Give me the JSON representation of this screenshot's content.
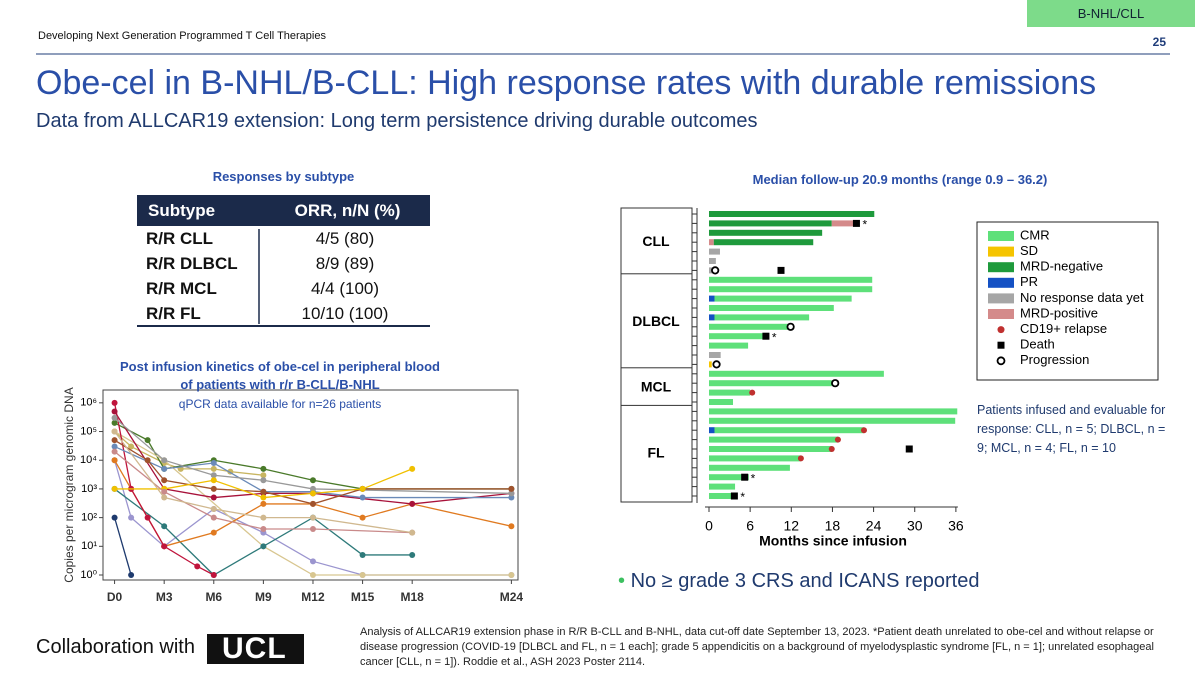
{
  "header": {
    "deck": "Developing Next Generation Programmed T Cell Therapies",
    "page": "25",
    "tag": "B-NHL/CLL",
    "title": "Obe-cel in B-NHL/B-CLL: High response rates with durable remissions",
    "subtitle": "Data from ALLCAR19 extension: Long term persistence driving durable outcomes"
  },
  "table": {
    "title": "Responses by subtype",
    "columns": [
      "Subtype",
      "ORR, n/N (%)"
    ],
    "rows": [
      [
        "R/R CLL",
        "4/5 (80)"
      ],
      [
        "R/R DLBCL",
        "8/9 (89)"
      ],
      [
        "R/R MCL",
        "4/4 (100)"
      ],
      [
        "R/R FL",
        "10/10 (100)"
      ]
    ]
  },
  "chart_data": [
    {
      "type": "line",
      "title": "Post infusion kinetics of obe-cel in peripheral blood of patients with r/r B-CLL/B-NHL",
      "subtitle": "qPCR data available for n=26 patients",
      "y_label": "Copies per microgram genomic DNA",
      "log_y": true,
      "xlim": [
        -0.7,
        24.4
      ],
      "ylim": [
        0.67,
        2800000
      ],
      "xticks": [
        {
          "value": 0,
          "label": "D0"
        },
        {
          "value": 3,
          "label": "M3"
        },
        {
          "value": 6,
          "label": "M6"
        },
        {
          "value": 9,
          "label": "M9"
        },
        {
          "value": 12,
          "label": "M12"
        },
        {
          "value": 15,
          "label": "M15"
        },
        {
          "value": 18,
          "label": "M18"
        },
        {
          "value": 24,
          "label": "M24"
        }
      ],
      "yticks": [
        {
          "value": 1,
          "label": "10⁰"
        },
        {
          "value": 10,
          "label": "10¹"
        },
        {
          "value": 100,
          "label": "10²"
        },
        {
          "value": 1000,
          "label": "10³"
        },
        {
          "value": 10000,
          "label": "10⁴"
        },
        {
          "value": 100000,
          "label": "10⁵"
        },
        {
          "value": 1000000,
          "label": "10⁶"
        }
      ],
      "series": [
        {
          "color": "#c8b560",
          "x": [
            0,
            1,
            3,
            4,
            6,
            7,
            9
          ],
          "values": [
            100000,
            30000,
            8000,
            5000,
            5000,
            4000,
            3000
          ]
        },
        {
          "color": "#4a7a2a",
          "x": [
            0,
            2,
            3,
            6,
            9,
            12,
            15,
            24
          ],
          "values": [
            200000,
            50000,
            5000,
            10000,
            5000,
            2000,
            1000,
            1000
          ]
        },
        {
          "color": "#9b95cf",
          "x": [
            0,
            1,
            3,
            6,
            9,
            12,
            15,
            24
          ],
          "values": [
            10000,
            100,
            10,
            200,
            30,
            3,
            1,
            1
          ]
        },
        {
          "color": "#d8c690",
          "x": [
            0,
            3,
            9,
            12,
            15,
            24
          ],
          "values": [
            100000,
            10000,
            10,
            1,
            1,
            1
          ]
        },
        {
          "color": "#2e7a7a",
          "x": [
            0,
            3,
            6,
            9,
            12,
            15,
            18
          ],
          "values": [
            1000,
            50,
            1,
            10,
            100,
            5,
            5
          ]
        },
        {
          "color": "#e07a20",
          "x": [
            0,
            1,
            3,
            6,
            9,
            12,
            15,
            18,
            24
          ],
          "values": [
            10000,
            1000,
            10,
            30,
            300,
            300,
            100,
            300,
            50
          ]
        },
        {
          "color": "#c0143c",
          "x": [
            0,
            1,
            2,
            3,
            5,
            6
          ],
          "values": [
            1000000,
            1000,
            100,
            10,
            2,
            1
          ]
        },
        {
          "color": "#a8123a",
          "x": [
            0,
            3,
            6,
            9,
            12,
            18,
            24
          ],
          "values": [
            500000,
            1000,
            500,
            700,
            700,
            300,
            700
          ]
        },
        {
          "color": "#6a8ab8",
          "x": [
            0,
            3,
            6,
            9,
            12,
            15,
            24
          ],
          "values": [
            30000,
            5000,
            8000,
            800,
            800,
            500,
            500
          ]
        },
        {
          "color": "#999999",
          "x": [
            0,
            3,
            6,
            9,
            12,
            24
          ],
          "values": [
            300000,
            10000,
            3000,
            2000,
            1000,
            700
          ]
        },
        {
          "color": "#a0522d",
          "x": [
            0,
            2,
            3,
            6,
            9,
            12,
            15,
            24
          ],
          "values": [
            50000,
            10000,
            2000,
            1000,
            800,
            300,
            1000,
            1000
          ]
        },
        {
          "color": "#f0c000",
          "x": [
            0,
            3,
            6,
            9,
            12,
            15,
            18
          ],
          "values": [
            1000,
            1000,
            2000,
            500,
            700,
            1000,
            5000
          ]
        },
        {
          "color": "#1e3a6e",
          "x": [
            0,
            1
          ],
          "values": [
            100,
            1
          ]
        },
        {
          "color": "#c98a8a",
          "x": [
            0,
            3,
            6,
            9,
            12,
            18
          ],
          "values": [
            20000,
            800,
            100,
            40,
            40,
            30
          ]
        },
        {
          "color": "#d0b88f",
          "x": [
            0,
            3,
            6,
            9,
            12,
            18
          ],
          "values": [
            100000,
            500,
            200,
            100,
            100,
            30
          ]
        }
      ]
    },
    {
      "type": "swimmer",
      "title": "Median follow-up 20.9 months (range 0.9 – 36.2)",
      "x_label": "Months since infusion",
      "xlim": [
        -1.75,
        36.6
      ],
      "xticks": [
        0,
        6,
        12,
        18,
        24,
        30,
        36
      ],
      "legend": [
        {
          "name": "CMR",
          "color": "#5ee07a",
          "shape": "box"
        },
        {
          "name": "SD",
          "color": "#f5c400",
          "shape": "box"
        },
        {
          "name": "MRD-negative",
          "color": "#1e9a3c",
          "shape": "box"
        },
        {
          "name": "PR",
          "color": "#1451c4",
          "shape": "box"
        },
        {
          "name": "No response data yet",
          "color": "#a6a6a6",
          "shape": "box"
        },
        {
          "name": "MRD-positive",
          "color": "#d48a8a",
          "shape": "box"
        },
        {
          "name": "CD19+ relapse",
          "color": "#c0302f",
          "shape": "dot"
        },
        {
          "name": "Death",
          "color": "#000000",
          "shape": "square"
        },
        {
          "name": "Progression",
          "color": "#000000",
          "shape": "ring"
        }
      ],
      "groups": [
        {
          "label": "CLL",
          "rows": [
            {
              "bars": [
                {
                  "status": "MRD-negative",
                  "months": 24.1
                }
              ]
            },
            {
              "bars": [
                {
                  "status": "MRD-negative",
                  "months": 17.9
                },
                {
                  "status": "MRD-positive",
                  "months": 3.2
                }
              ],
              "events": [
                {
                  "event": "Death",
                  "months": 21.5,
                  "note": "*"
                }
              ]
            },
            {
              "bars": [
                {
                  "status": "MRD-negative",
                  "months": 16.5
                }
              ]
            },
            {
              "bars": [
                {
                  "status": "MRD-positive",
                  "months": 0.7
                },
                {
                  "status": "MRD-negative",
                  "months": 14.5
                }
              ]
            },
            {
              "bars": [
                {
                  "status": "No response data yet",
                  "months": 1.6
                }
              ]
            },
            {
              "bars": [
                {
                  "status": "No response data yet",
                  "months": 1
                }
              ]
            },
            {
              "bars": [
                {
                  "status": "No response data yet",
                  "months": 0.8
                }
              ],
              "events": [
                {
                  "event": "Progression",
                  "months": 0.9
                },
                {
                  "event": "Death",
                  "months": 10.5
                }
              ]
            }
          ]
        },
        {
          "label": "DLBCL",
          "rows": [
            {
              "bars": [
                {
                  "status": "CMR",
                  "months": 23.8
                }
              ]
            },
            {
              "bars": [
                {
                  "status": "CMR",
                  "months": 23.8
                }
              ]
            },
            {
              "bars": [
                {
                  "status": "PR",
                  "months": 0.8
                },
                {
                  "status": "CMR",
                  "months": 20
                }
              ]
            },
            {
              "bars": [
                {
                  "status": "CMR",
                  "months": 18.2
                }
              ]
            },
            {
              "bars": [
                {
                  "status": "PR",
                  "months": 0.8
                },
                {
                  "status": "CMR",
                  "months": 13.8
                }
              ]
            },
            {
              "bars": [
                {
                  "status": "CMR",
                  "months": 11.8
                }
              ],
              "events": [
                {
                  "event": "Progression",
                  "months": 11.9
                }
              ]
            },
            {
              "bars": [
                {
                  "status": "CMR",
                  "months": 8.3
                }
              ],
              "events": [
                {
                  "event": "Death",
                  "months": 8.3,
                  "note": "*"
                }
              ]
            },
            {
              "bars": [
                {
                  "status": "CMR",
                  "months": 5.7
                }
              ]
            },
            {
              "bars": [
                {
                  "status": "No response data yet",
                  "months": 1.7
                }
              ]
            },
            {
              "bars": [
                {
                  "status": "SD",
                  "months": 0.4
                }
              ],
              "events": [
                {
                  "event": "Progression",
                  "months": 1.1
                }
              ]
            }
          ]
        },
        {
          "label": "MCL",
          "rows": [
            {
              "bars": [
                {
                  "status": "CMR",
                  "months": 25.5
                }
              ]
            },
            {
              "bars": [
                {
                  "status": "CMR",
                  "months": 17.9
                }
              ],
              "events": [
                {
                  "event": "Progression",
                  "months": 18.4
                }
              ]
            },
            {
              "bars": [
                {
                  "status": "CMR",
                  "months": 6
                }
              ],
              "events": [
                {
                  "event": "CD19+ relapse",
                  "months": 6.3
                }
              ]
            },
            {
              "bars": [
                {
                  "status": "CMR",
                  "months": 3.5
                }
              ]
            }
          ]
        },
        {
          "label": "FL",
          "rows": [
            {
              "bars": [
                {
                  "status": "CMR",
                  "months": 36.2
                }
              ]
            },
            {
              "bars": [
                {
                  "status": "CMR",
                  "months": 35.9
                }
              ]
            },
            {
              "bars": [
                {
                  "status": "PR",
                  "months": 0.8
                },
                {
                  "status": "CMR",
                  "months": 21.8
                }
              ],
              "events": [
                {
                  "event": "CD19+ relapse",
                  "months": 22.6
                }
              ]
            },
            {
              "bars": [
                {
                  "status": "CMR",
                  "months": 18.8
                }
              ],
              "events": [
                {
                  "event": "CD19+ relapse",
                  "months": 18.8
                }
              ]
            },
            {
              "bars": [
                {
                  "status": "CMR",
                  "months": 17.9
                }
              ],
              "events": [
                {
                  "event": "CD19+ relapse",
                  "months": 17.9
                },
                {
                  "event": "Death",
                  "months": 29.2
                }
              ]
            },
            {
              "bars": [
                {
                  "status": "CMR",
                  "months": 13.4
                }
              ],
              "events": [
                {
                  "event": "CD19+ relapse",
                  "months": 13.4
                }
              ]
            },
            {
              "bars": [
                {
                  "status": "CMR",
                  "months": 11.8
                }
              ]
            },
            {
              "bars": [
                {
                  "status": "CMR",
                  "months": 5.8
                }
              ],
              "events": [
                {
                  "event": "Death",
                  "months": 5.2,
                  "note": "*"
                }
              ]
            },
            {
              "bars": [
                {
                  "status": "CMR",
                  "months": 3.8
                }
              ]
            },
            {
              "bars": [
                {
                  "status": "CMR",
                  "months": 3.8
                }
              ],
              "events": [
                {
                  "event": "Death",
                  "months": 3.7,
                  "note": "*"
                }
              ]
            }
          ]
        }
      ],
      "note": "Patients infused and evaluable for response: CLL, n = 5; DLBCL, n = 9; MCL, n = 4; FL, n = 10"
    }
  ],
  "bullet": "No ≥ grade 3 CRS and ICANS reported",
  "footer": {
    "collab": "Collaboration with",
    "logo": "UCL",
    "footnote": "Analysis of ALLCAR19 extension phase in R/R B-CLL and B-NHL, data cut-off date September 13, 2023. *Patient death unrelated to obe-cel and without relapse or disease progression (COVID-19 [DLBCL and FL, n = 1 each]; grade 5 appendicitis on a background of myelodysplastic syndrome [FL, n = 1]; unrelated esophageal cancer [CLL, n = 1]). Roddie et al., ASH 2023 Poster 2114."
  }
}
